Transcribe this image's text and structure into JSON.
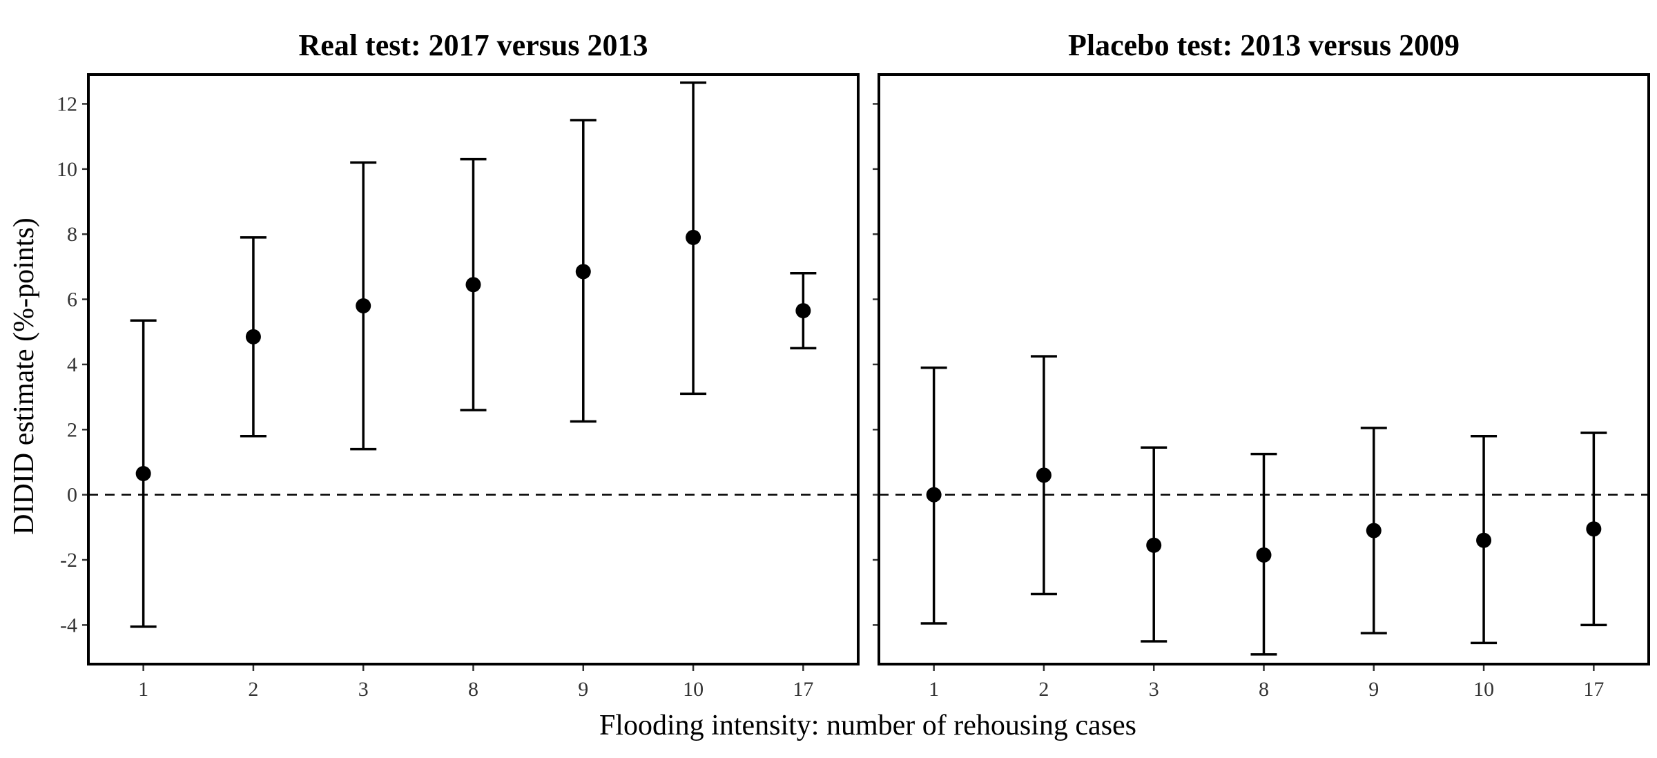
{
  "figure": {
    "xlabel": "Flooding intensity: number of rehousing cases",
    "ylabel": "DIDID estimate (%-points)"
  },
  "chart_data": [
    {
      "type": "scatter",
      "title": "Real test: 2017 versus 2013",
      "xlabel": "Flooding intensity: number of rehousing cases",
      "ylabel": "DIDID estimate (%-points)",
      "categories": [
        "1",
        "2",
        "3",
        "8",
        "9",
        "10",
        "17"
      ],
      "estimate": [
        0.65,
        4.85,
        5.8,
        6.45,
        6.85,
        7.9,
        5.65
      ],
      "ci_lower": [
        -4.05,
        1.8,
        1.4,
        2.6,
        2.25,
        3.1,
        4.5
      ],
      "ci_upper": [
        5.35,
        7.9,
        10.2,
        10.3,
        11.5,
        12.65,
        6.8
      ],
      "ylim": [
        -5.2,
        12.9
      ],
      "yticks": [
        12,
        10,
        8,
        6,
        4,
        2,
        0,
        -2,
        -4
      ],
      "reference_line": 0,
      "grid": false
    },
    {
      "type": "scatter",
      "title": "Placebo test: 2013 versus 2009",
      "xlabel": "Flooding intensity: number of rehousing cases",
      "ylabel": "DIDID estimate (%-points)",
      "categories": [
        "1",
        "2",
        "3",
        "8",
        "9",
        "10",
        "17"
      ],
      "estimate": [
        0.0,
        0.6,
        -1.55,
        -1.85,
        -1.1,
        -1.4,
        -1.05
      ],
      "ci_lower": [
        -3.95,
        -3.05,
        -4.5,
        -4.9,
        -4.25,
        -4.55,
        -4.0
      ],
      "ci_upper": [
        3.9,
        4.25,
        1.45,
        1.25,
        2.05,
        1.8,
        1.9
      ],
      "ylim": [
        -5.2,
        12.9
      ],
      "yticks": [
        12,
        10,
        8,
        6,
        4,
        2,
        0,
        -2,
        -4
      ],
      "reference_line": 0,
      "grid": false
    }
  ]
}
